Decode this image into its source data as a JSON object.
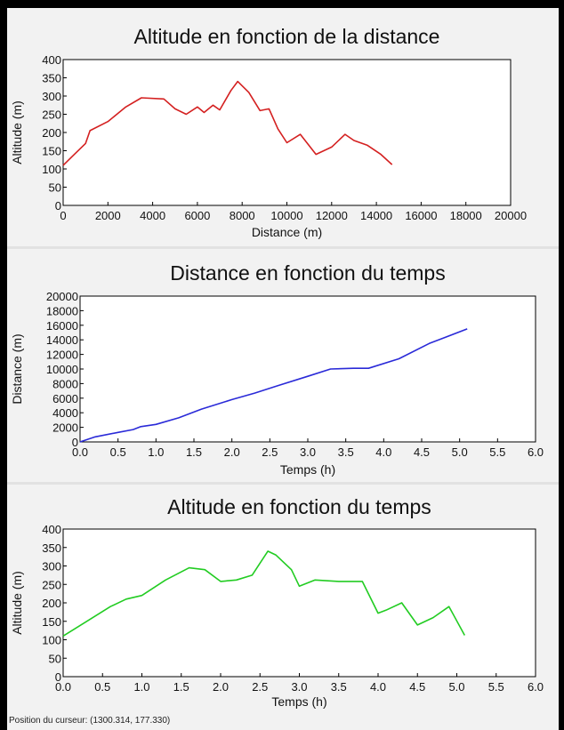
{
  "status_text": "Position du curseur: (1300.314, 177.330)",
  "chart_data": [
    {
      "type": "line",
      "title": "Altitude en fonction de la distance",
      "xlabel": "Distance (m)",
      "ylabel": "Altitude (m)",
      "xlim": [
        0,
        20000
      ],
      "ylim": [
        0,
        400
      ],
      "xticks": [
        0,
        2000,
        4000,
        6000,
        8000,
        10000,
        12000,
        14000,
        16000,
        18000,
        20000
      ],
      "yticks": [
        0,
        50,
        100,
        150,
        200,
        250,
        300,
        350,
        400
      ],
      "color": "#d42020",
      "grid": false,
      "x": [
        0,
        500,
        1000,
        1200,
        2000,
        2800,
        3500,
        4500,
        5000,
        5500,
        6000,
        6300,
        6700,
        7000,
        7500,
        7800,
        8300,
        8800,
        9200,
        9600,
        10000,
        10600,
        11300,
        12000,
        12600,
        13000,
        13600,
        14200,
        14700
      ],
      "y": [
        110,
        140,
        170,
        205,
        230,
        270,
        295,
        292,
        265,
        250,
        270,
        255,
        275,
        262,
        315,
        340,
        310,
        260,
        265,
        210,
        172,
        195,
        140,
        160,
        195,
        178,
        165,
        140,
        112
      ]
    },
    {
      "type": "line",
      "title": "Distance en fonction du temps",
      "xlabel": "Temps (h)",
      "ylabel": "Distance (m)",
      "xlim": [
        0,
        6
      ],
      "ylim": [
        0,
        20000
      ],
      "xticks": [
        "0.0",
        "0.5",
        "1.0",
        "1.5",
        "2.0",
        "2.5",
        "3.0",
        "3.5",
        "4.0",
        "4.5",
        "5.0",
        "5.5",
        "6.0"
      ],
      "yticks": [
        0,
        2000,
        4000,
        6000,
        8000,
        10000,
        12000,
        14000,
        16000,
        18000,
        20000
      ],
      "color": "#2a2ad8",
      "grid": false,
      "x": [
        0.0,
        0.2,
        0.5,
        0.7,
        0.8,
        1.0,
        1.3,
        1.6,
        2.0,
        2.3,
        2.6,
        3.0,
        3.3,
        3.6,
        3.8,
        4.2,
        4.6,
        5.1
      ],
      "y": [
        0,
        700,
        1300,
        1700,
        2100,
        2400,
        3300,
        4500,
        5800,
        6700,
        7700,
        9000,
        10000,
        10100,
        10100,
        11400,
        13500,
        15500
      ]
    },
    {
      "type": "line",
      "title": "Altitude en fonction du temps",
      "xlabel": "Temps (h)",
      "ylabel": "Altitude (m)",
      "xlim": [
        0,
        6
      ],
      "ylim": [
        0,
        400
      ],
      "xticks": [
        "0.0",
        "0.5",
        "1.0",
        "1.5",
        "2.0",
        "2.5",
        "3.0",
        "3.5",
        "4.0",
        "4.5",
        "5.0",
        "5.5",
        "6.0"
      ],
      "yticks": [
        0,
        50,
        100,
        150,
        200,
        250,
        300,
        350,
        400
      ],
      "color": "#22cc22",
      "grid": false,
      "x": [
        0.0,
        0.3,
        0.6,
        0.8,
        1.0,
        1.3,
        1.6,
        1.8,
        2.0,
        2.2,
        2.4,
        2.6,
        2.7,
        2.9,
        3.0,
        3.2,
        3.5,
        3.8,
        4.0,
        4.1,
        4.3,
        4.5,
        4.7,
        4.9,
        5.1
      ],
      "y": [
        110,
        150,
        190,
        210,
        220,
        262,
        295,
        290,
        258,
        262,
        275,
        340,
        330,
        290,
        245,
        262,
        258,
        258,
        172,
        180,
        200,
        140,
        160,
        190,
        112
      ]
    }
  ]
}
